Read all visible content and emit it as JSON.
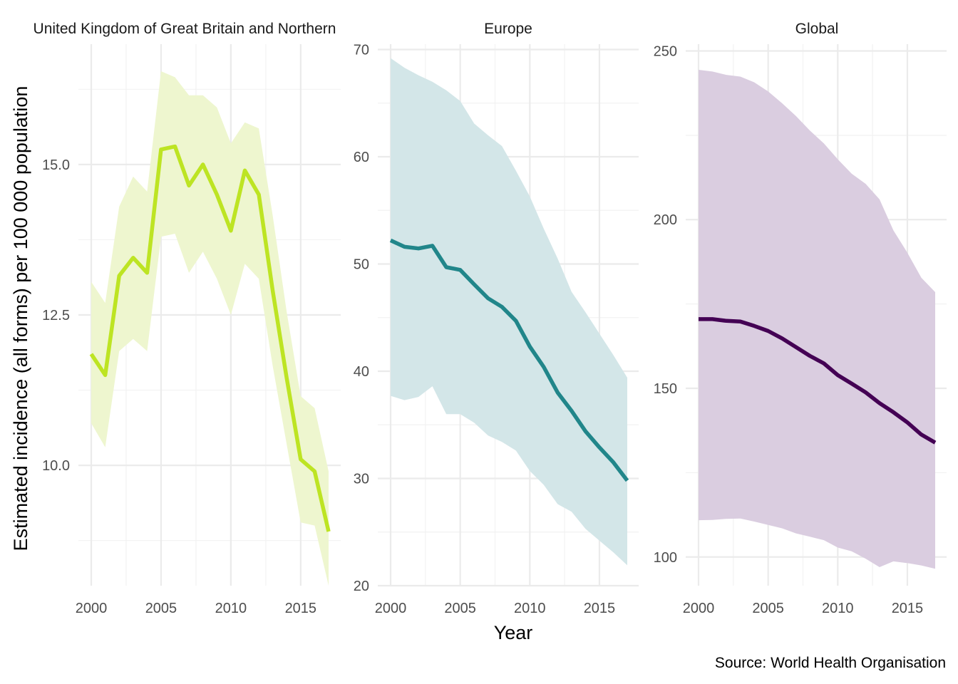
{
  "chart_data": {
    "type": "line",
    "ylabel": "Estimated incidence (all forms) per 100 000 population",
    "xlabel": "Year",
    "caption": "Source: World Health Organisation",
    "grid": true,
    "x": [
      2000,
      2001,
      2002,
      2003,
      2004,
      2005,
      2006,
      2007,
      2008,
      2009,
      2010,
      2011,
      2012,
      2013,
      2014,
      2015,
      2016,
      2017
    ],
    "panels": [
      {
        "title": "United Kingdom of Great Britain and Northern Ireland",
        "color": "#bde423",
        "ribbon_color": "#eef6cf",
        "xlim": [
          2000,
          2017
        ],
        "ylim": [
          8.0,
          17.0
        ],
        "x_ticks": [
          2000,
          2005,
          2010,
          2015
        ],
        "y_ticks": [
          10.0,
          12.5,
          15.0
        ],
        "y_tick_labels": [
          "10.0",
          "12.5",
          "15.0"
        ],
        "values": [
          11.85,
          11.5,
          13.15,
          13.45,
          13.2,
          15.25,
          15.3,
          14.65,
          15.0,
          14.5,
          13.9,
          14.9,
          14.5,
          12.9,
          11.45,
          10.1,
          9.9,
          8.9
        ],
        "lower": [
          10.7,
          10.3,
          11.9,
          12.1,
          11.9,
          13.8,
          13.85,
          13.2,
          13.55,
          13.1,
          12.5,
          13.35,
          13.1,
          11.65,
          10.35,
          9.05,
          9.0,
          8.0
        ],
        "upper": [
          13.05,
          12.7,
          14.3,
          14.8,
          14.55,
          16.55,
          16.45,
          16.15,
          16.15,
          15.95,
          15.35,
          15.7,
          15.6,
          14.15,
          12.55,
          11.15,
          10.95,
          9.9
        ]
      },
      {
        "title": "Europe",
        "color": "#21868a",
        "ribbon_color": "#d3e6e8",
        "xlim": [
          2000,
          2017
        ],
        "ylim": [
          20,
          70.5
        ],
        "x_ticks": [
          2000,
          2005,
          2010,
          2015
        ],
        "y_ticks": [
          20,
          30,
          40,
          50,
          60,
          70
        ],
        "y_tick_labels": [
          "20",
          "30",
          "40",
          "50",
          "60",
          "70"
        ],
        "values": [
          52.2,
          51.6,
          51.45,
          51.7,
          49.7,
          49.45,
          48.1,
          46.8,
          46.0,
          44.7,
          42.3,
          40.4,
          38.0,
          36.3,
          34.4,
          32.9,
          31.5,
          29.8
        ],
        "lower": [
          37.7,
          37.3,
          37.6,
          38.6,
          36.0,
          36.0,
          35.2,
          34.0,
          33.4,
          32.6,
          30.7,
          29.4,
          27.6,
          26.9,
          25.3,
          24.2,
          23.1,
          21.9
        ],
        "upper": [
          69.2,
          68.3,
          67.6,
          67.0,
          66.2,
          65.2,
          63.1,
          62.0,
          61.0,
          58.7,
          56.3,
          53.3,
          50.5,
          47.4,
          45.5,
          43.5,
          41.5,
          39.4
        ]
      },
      {
        "title": "Global",
        "color": "#440154",
        "ribbon_color": "#dacde0",
        "xlim": [
          2000,
          2017
        ],
        "ylim": [
          91.5,
          252
        ],
        "x_ticks": [
          2000,
          2005,
          2010,
          2015
        ],
        "y_ticks": [
          100,
          150,
          200,
          250
        ],
        "y_tick_labels": [
          "100",
          "150",
          "200",
          "250"
        ],
        "values": [
          170.5,
          170.5,
          170.0,
          169.8,
          168.5,
          167.0,
          164.8,
          162.2,
          159.6,
          157.4,
          153.9,
          151.4,
          148.8,
          145.6,
          142.9,
          139.9,
          136.3,
          133.9
        ],
        "lower": [
          110.9,
          111.0,
          111.3,
          111.4,
          110.5,
          109.5,
          108.5,
          107.0,
          106.0,
          105.0,
          102.8,
          101.7,
          99.5,
          97.0,
          98.7,
          98.2,
          97.5,
          96.5
        ],
        "upper": [
          244.4,
          243.9,
          242.9,
          242.4,
          240.7,
          238.0,
          234.5,
          230.7,
          226.4,
          222.6,
          217.9,
          213.6,
          210.6,
          206.0,
          196.8,
          190.2,
          182.8,
          178.5
        ]
      }
    ]
  }
}
